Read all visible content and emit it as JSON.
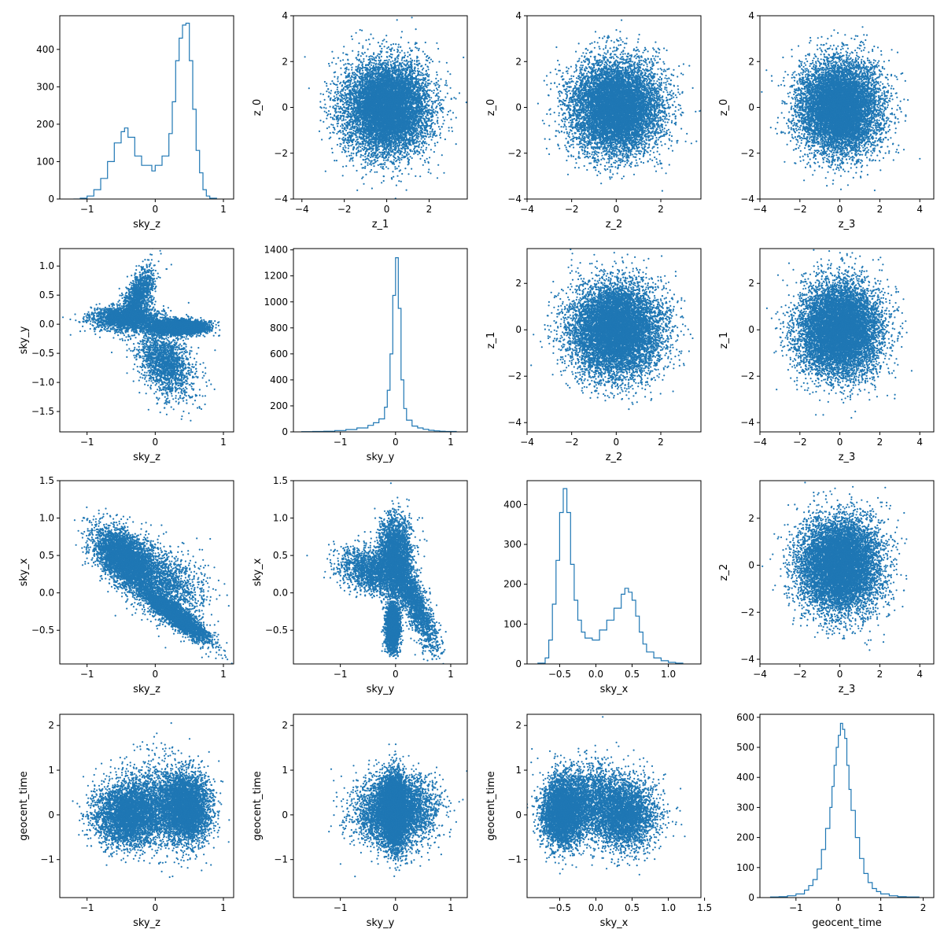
{
  "figure": {
    "layout": "4x4 corner plot",
    "accent_color": "#1f77b4",
    "axis_color": "#000000",
    "background": "#ffffff"
  },
  "chart_data": [
    {
      "id": "p00",
      "type": "histogram",
      "row": 0,
      "col": 0,
      "xlabel": "sky_z",
      "ylabel": "",
      "xlim": [
        -1.4,
        1.15
      ],
      "ylim": [
        0,
        490
      ],
      "xticks": [
        -1,
        0,
        1
      ],
      "yticks": [
        0,
        100,
        200,
        300,
        400
      ],
      "bins": [
        [
          -1.2,
          0
        ],
        [
          -1.1,
          2
        ],
        [
          -1.0,
          8
        ],
        [
          -0.9,
          25
        ],
        [
          -0.8,
          55
        ],
        [
          -0.7,
          100
        ],
        [
          -0.6,
          150
        ],
        [
          -0.5,
          180
        ],
        [
          -0.45,
          190
        ],
        [
          -0.4,
          165
        ],
        [
          -0.3,
          115
        ],
        [
          -0.2,
          90
        ],
        [
          -0.1,
          90
        ],
        [
          -0.05,
          75
        ],
        [
          0.0,
          90
        ],
        [
          0.1,
          115
        ],
        [
          0.2,
          175
        ],
        [
          0.25,
          260
        ],
        [
          0.3,
          370
        ],
        [
          0.35,
          430
        ],
        [
          0.4,
          465
        ],
        [
          0.45,
          470
        ],
        [
          0.5,
          370
        ],
        [
          0.55,
          240
        ],
        [
          0.6,
          130
        ],
        [
          0.65,
          70
        ],
        [
          0.7,
          25
        ],
        [
          0.75,
          8
        ],
        [
          0.8,
          2
        ],
        [
          0.9,
          0
        ]
      ]
    },
    {
      "id": "p01",
      "type": "scatter",
      "row": 0,
      "col": 1,
      "xlabel": "z_1",
      "ylabel": "z_0",
      "xlim": [
        -4.4,
        3.8
      ],
      "ylim": [
        -4.0,
        4.0
      ],
      "xticks": [
        -4,
        -2,
        0,
        2
      ],
      "yticks": [
        -4,
        -2,
        0,
        2,
        4
      ],
      "distribution": {
        "kind": "gaussian_cloud",
        "mean": [
          0,
          0
        ],
        "std": [
          1,
          1
        ],
        "n": 9000
      }
    },
    {
      "id": "p02",
      "type": "scatter",
      "row": 0,
      "col": 2,
      "xlabel": "z_2",
      "ylabel": "z_0",
      "xlim": [
        -4.0,
        3.8
      ],
      "ylim": [
        -4.0,
        4.0
      ],
      "xticks": [
        -4,
        -2,
        0,
        2
      ],
      "yticks": [
        -4,
        -2,
        0,
        2,
        4
      ],
      "distribution": {
        "kind": "gaussian_cloud",
        "mean": [
          0,
          0
        ],
        "std": [
          1,
          1
        ],
        "n": 9000
      }
    },
    {
      "id": "p03",
      "type": "scatter",
      "row": 0,
      "col": 3,
      "xlabel": "z_3",
      "ylabel": "z_0",
      "xlim": [
        -4.0,
        4.7
      ],
      "ylim": [
        -4.0,
        4.0
      ],
      "xticks": [
        -4,
        -2,
        0,
        2,
        4
      ],
      "yticks": [
        -4,
        -2,
        0,
        2,
        4
      ],
      "distribution": {
        "kind": "gaussian_cloud",
        "mean": [
          0,
          0
        ],
        "std": [
          1,
          1
        ],
        "n": 9000
      }
    },
    {
      "id": "p10",
      "type": "scatter",
      "row": 1,
      "col": 0,
      "xlabel": "sky_z",
      "ylabel": "sky_y",
      "xlim": [
        -1.4,
        1.15
      ],
      "ylim": [
        -1.85,
        1.3
      ],
      "xticks": [
        -1,
        0,
        1
      ],
      "yticks": [
        -1.5,
        -1.0,
        -0.5,
        0.0,
        0.5,
        1.0
      ],
      "distribution": {
        "kind": "mixture",
        "n": 9000,
        "components": [
          {
            "w": 0.42,
            "mean": [
              0.35,
              -0.05
            ],
            "std": [
              0.2,
              0.06
            ],
            "corr": 0
          },
          {
            "w": 0.22,
            "mean": [
              -0.45,
              0.1
            ],
            "std": [
              0.25,
              0.1
            ],
            "corr": 0
          },
          {
            "w": 0.16,
            "mean": [
              -0.25,
              0.45
            ],
            "std": [
              0.12,
              0.25
            ],
            "corr": 0.6
          },
          {
            "w": 0.2,
            "mean": [
              0.15,
              -0.65
            ],
            "std": [
              0.2,
              0.3
            ],
            "corr": -0.4
          }
        ]
      }
    },
    {
      "id": "p11",
      "type": "histogram",
      "row": 1,
      "col": 1,
      "xlabel": "sky_y",
      "ylabel": "",
      "xlim": [
        -1.85,
        1.3
      ],
      "ylim": [
        0,
        1410
      ],
      "xticks": [
        -1,
        0,
        1
      ],
      "yticks": [
        0,
        200,
        400,
        600,
        800,
        1000,
        1200,
        1400
      ],
      "bins": [
        [
          -1.7,
          2
        ],
        [
          -1.5,
          3
        ],
        [
          -1.3,
          5
        ],
        [
          -1.1,
          10
        ],
        [
          -0.9,
          18
        ],
        [
          -0.7,
          30
        ],
        [
          -0.5,
          50
        ],
        [
          -0.4,
          70
        ],
        [
          -0.3,
          100
        ],
        [
          -0.2,
          190
        ],
        [
          -0.15,
          320
        ],
        [
          -0.1,
          600
        ],
        [
          -0.05,
          1050
        ],
        [
          0.0,
          1340
        ],
        [
          0.05,
          950
        ],
        [
          0.1,
          400
        ],
        [
          0.15,
          180
        ],
        [
          0.2,
          90
        ],
        [
          0.3,
          45
        ],
        [
          0.4,
          30
        ],
        [
          0.5,
          20
        ],
        [
          0.6,
          12
        ],
        [
          0.7,
          8
        ],
        [
          0.8,
          5
        ],
        [
          0.9,
          3
        ],
        [
          1.1,
          0
        ]
      ]
    },
    {
      "id": "p12",
      "type": "scatter",
      "row": 1,
      "col": 2,
      "xlabel": "z_2",
      "ylabel": "z_1",
      "xlim": [
        -4.0,
        3.8
      ],
      "ylim": [
        -4.4,
        3.5
      ],
      "xticks": [
        -4,
        -2,
        0,
        2
      ],
      "yticks": [
        -4,
        -2,
        0,
        2
      ],
      "distribution": {
        "kind": "gaussian_cloud",
        "mean": [
          0,
          0
        ],
        "std": [
          1,
          1
        ],
        "n": 9000
      }
    },
    {
      "id": "p13",
      "type": "scatter",
      "row": 1,
      "col": 3,
      "xlabel": "z_3",
      "ylabel": "z_1",
      "xlim": [
        -4.0,
        4.7
      ],
      "ylim": [
        -4.4,
        3.5
      ],
      "xticks": [
        -4,
        -2,
        0,
        2,
        4
      ],
      "yticks": [
        -4,
        -2,
        0,
        2
      ],
      "distribution": {
        "kind": "gaussian_cloud",
        "mean": [
          0,
          0
        ],
        "std": [
          1,
          1
        ],
        "n": 9000
      }
    },
    {
      "id": "p20",
      "type": "scatter",
      "row": 2,
      "col": 0,
      "xlabel": "sky_z",
      "ylabel": "sky_x",
      "xlim": [
        -1.4,
        1.15
      ],
      "ylim": [
        -0.95,
        1.5
      ],
      "xticks": [
        -1,
        0,
        1
      ],
      "yticks": [
        -0.5,
        0.0,
        0.5,
        1.0,
        1.5
      ],
      "distribution": {
        "kind": "mixture",
        "n": 9000,
        "components": [
          {
            "w": 0.45,
            "mean": [
              -0.45,
              0.45
            ],
            "std": [
              0.22,
              0.2
            ],
            "corr": -0.5
          },
          {
            "w": 0.35,
            "mean": [
              0.3,
              -0.3
            ],
            "std": [
              0.25,
              0.18
            ],
            "corr": -0.9
          },
          {
            "w": 0.2,
            "mean": [
              0.1,
              0.15
            ],
            "std": [
              0.3,
              0.25
            ],
            "corr": -0.4
          }
        ]
      }
    },
    {
      "id": "p21",
      "type": "scatter",
      "row": 2,
      "col": 1,
      "xlabel": "sky_y",
      "ylabel": "sky_x",
      "xlim": [
        -1.85,
        1.3
      ],
      "ylim": [
        -0.95,
        1.5
      ],
      "xticks": [
        -1,
        0,
        1
      ],
      "yticks": [
        -0.5,
        0.0,
        0.5,
        1.0,
        1.5
      ],
      "distribution": {
        "kind": "mixture",
        "n": 9000,
        "components": [
          {
            "w": 0.3,
            "mean": [
              -0.05,
              -0.45
            ],
            "std": [
              0.06,
              0.15
            ],
            "corr": 0
          },
          {
            "w": 0.3,
            "mean": [
              0.0,
              0.5
            ],
            "std": [
              0.15,
              0.25
            ],
            "corr": 0
          },
          {
            "w": 0.2,
            "mean": [
              -0.4,
              0.3
            ],
            "std": [
              0.3,
              0.15
            ],
            "corr": -0.3
          },
          {
            "w": 0.2,
            "mean": [
              0.35,
              -0.15
            ],
            "std": [
              0.2,
              0.3
            ],
            "corr": -0.8
          }
        ]
      }
    },
    {
      "id": "p22",
      "type": "histogram",
      "row": 2,
      "col": 2,
      "xlabel": "sky_x",
      "ylabel": "",
      "xlim": [
        -0.95,
        1.45
      ],
      "ylim": [
        0,
        460
      ],
      "xticks": [
        -0.5,
        0.0,
        0.5,
        1.0
      ],
      "yticks": [
        0,
        100,
        200,
        300,
        400
      ],
      "bins": [
        [
          -0.8,
          2
        ],
        [
          -0.7,
          15
        ],
        [
          -0.65,
          60
        ],
        [
          -0.6,
          150
        ],
        [
          -0.55,
          260
        ],
        [
          -0.5,
          380
        ],
        [
          -0.45,
          440
        ],
        [
          -0.4,
          380
        ],
        [
          -0.35,
          250
        ],
        [
          -0.3,
          160
        ],
        [
          -0.25,
          110
        ],
        [
          -0.2,
          80
        ],
        [
          -0.15,
          65
        ],
        [
          -0.05,
          60
        ],
        [
          0.05,
          85
        ],
        [
          0.15,
          110
        ],
        [
          0.25,
          140
        ],
        [
          0.35,
          175
        ],
        [
          0.4,
          190
        ],
        [
          0.45,
          180
        ],
        [
          0.5,
          160
        ],
        [
          0.55,
          120
        ],
        [
          0.6,
          80
        ],
        [
          0.65,
          50
        ],
        [
          0.7,
          30
        ],
        [
          0.8,
          15
        ],
        [
          0.9,
          8
        ],
        [
          1.0,
          4
        ],
        [
          1.1,
          2
        ],
        [
          1.2,
          0
        ]
      ]
    },
    {
      "id": "p23",
      "type": "scatter",
      "row": 2,
      "col": 3,
      "xlabel": "z_3",
      "ylabel": "z_2",
      "xlim": [
        -4.0,
        4.7
      ],
      "ylim": [
        -4.2,
        3.6
      ],
      "xticks": [
        -4,
        -2,
        0,
        2,
        4
      ],
      "yticks": [
        -4,
        -2,
        0,
        2
      ],
      "distribution": {
        "kind": "gaussian_cloud",
        "mean": [
          0,
          0
        ],
        "std": [
          1,
          1
        ],
        "n": 9000
      }
    },
    {
      "id": "p30",
      "type": "scatter",
      "row": 3,
      "col": 0,
      "xlabel": "sky_z",
      "ylabel": "geocent_time",
      "xlim": [
        -1.4,
        1.15
      ],
      "ylim": [
        -1.85,
        2.25
      ],
      "xticks": [
        -1,
        0,
        1
      ],
      "yticks": [
        -1,
        0,
        1,
        2
      ],
      "distribution": {
        "kind": "mixture",
        "n": 9000,
        "components": [
          {
            "w": 0.45,
            "mean": [
              0.45,
              0.15
            ],
            "std": [
              0.18,
              0.4
            ],
            "corr": 0
          },
          {
            "w": 0.4,
            "mean": [
              -0.4,
              0.0
            ],
            "std": [
              0.25,
              0.35
            ],
            "corr": 0
          },
          {
            "w": 0.15,
            "mean": [
              0.0,
              0.3
            ],
            "std": [
              0.3,
              0.5
            ],
            "corr": 0
          }
        ]
      }
    },
    {
      "id": "p31",
      "type": "scatter",
      "row": 3,
      "col": 1,
      "xlabel": "sky_y",
      "ylabel": "geocent_time",
      "xlim": [
        -1.85,
        1.3
      ],
      "ylim": [
        -1.85,
        2.25
      ],
      "xticks": [
        -1,
        0,
        1
      ],
      "yticks": [
        -1,
        0,
        1,
        2
      ],
      "distribution": {
        "kind": "mixture",
        "n": 9000,
        "components": [
          {
            "w": 0.5,
            "mean": [
              -0.02,
              0.1
            ],
            "std": [
              0.1,
              0.4
            ],
            "corr": 0
          },
          {
            "w": 0.5,
            "mean": [
              0.0,
              0.1
            ],
            "std": [
              0.35,
              0.38
            ],
            "corr": 0
          }
        ]
      }
    },
    {
      "id": "p32",
      "type": "scatter",
      "row": 3,
      "col": 2,
      "xlabel": "sky_x",
      "ylabel": "geocent_time",
      "xlim": [
        -0.95,
        1.45
      ],
      "ylim": [
        -1.85,
        2.25
      ],
      "xticks": [
        -0.5,
        0.0,
        0.5,
        1.0,
        1.5
      ],
      "yticks": [
        -1,
        0,
        1,
        2
      ],
      "distribution": {
        "kind": "mixture",
        "n": 9000,
        "components": [
          {
            "w": 0.45,
            "mean": [
              -0.45,
              0.05
            ],
            "std": [
              0.15,
              0.38
            ],
            "corr": 0
          },
          {
            "w": 0.35,
            "mean": [
              0.4,
              0.0
            ],
            "std": [
              0.22,
              0.38
            ],
            "corr": 0
          },
          {
            "w": 0.2,
            "mean": [
              -0.05,
              0.35
            ],
            "std": [
              0.25,
              0.4
            ],
            "corr": 0
          }
        ]
      }
    },
    {
      "id": "p33",
      "type": "histogram",
      "row": 3,
      "col": 3,
      "xlabel": "geocent_time",
      "ylabel": "",
      "xlim": [
        -1.85,
        2.25
      ],
      "ylim": [
        0,
        610
      ],
      "xticks": [
        -1,
        0,
        1,
        2
      ],
      "yticks": [
        0,
        100,
        200,
        300,
        400,
        500,
        600
      ],
      "bins": [
        [
          -1.6,
          2
        ],
        [
          -1.4,
          3
        ],
        [
          -1.2,
          6
        ],
        [
          -1.0,
          12
        ],
        [
          -0.8,
          25
        ],
        [
          -0.7,
          40
        ],
        [
          -0.6,
          60
        ],
        [
          -0.5,
          95
        ],
        [
          -0.4,
          160
        ],
        [
          -0.3,
          230
        ],
        [
          -0.2,
          300
        ],
        [
          -0.15,
          370
        ],
        [
          -0.1,
          440
        ],
        [
          -0.05,
          500
        ],
        [
          0.0,
          540
        ],
        [
          0.05,
          580
        ],
        [
          0.1,
          560
        ],
        [
          0.15,
          530
        ],
        [
          0.2,
          440
        ],
        [
          0.25,
          360
        ],
        [
          0.3,
          290
        ],
        [
          0.4,
          200
        ],
        [
          0.5,
          130
        ],
        [
          0.6,
          80
        ],
        [
          0.7,
          50
        ],
        [
          0.8,
          30
        ],
        [
          0.9,
          20
        ],
        [
          1.0,
          12
        ],
        [
          1.2,
          6
        ],
        [
          1.4,
          3
        ],
        [
          1.6,
          2
        ],
        [
          1.9,
          0
        ]
      ]
    }
  ]
}
